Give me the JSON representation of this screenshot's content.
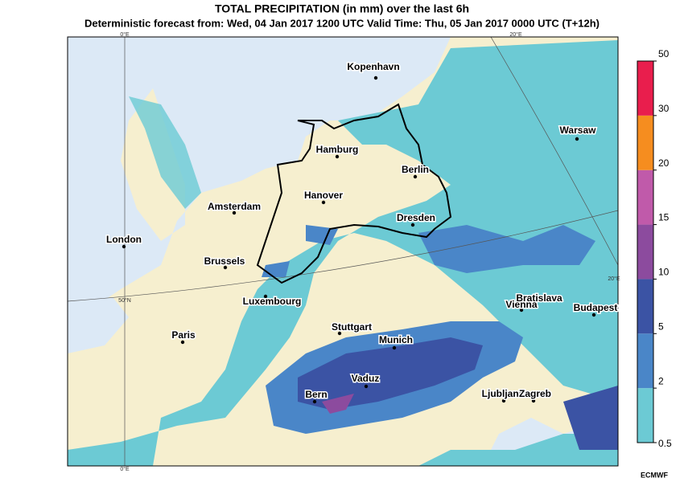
{
  "header": {
    "title": "TOTAL PRECIPITATION (in mm) over the last 6h",
    "subtitle": "Deterministic forecast from: Wed, 04 Jan 2017 1200 UTC   Valid Time: Thu, 05 Jan 2017 0000 UTC (T+12h)"
  },
  "cities": [
    "Kopenhavn",
    "Hamburg",
    "Berlin",
    "Warsaw",
    "Hanover",
    "Amsterdam",
    "Dresden",
    "London",
    "Brussels",
    "Luxembourg",
    "Bratislava",
    "Vienna",
    "Budapest",
    "Stuttgart",
    "Paris",
    "Munich",
    "Vaduz",
    "Bern",
    "Ljubljana",
    "Zagreb"
  ],
  "graticule_labels": [
    "0°E",
    "20°E",
    "20°E",
    "50°N",
    "0°E"
  ],
  "colorbar": {
    "ticks": [
      0.5,
      2,
      5,
      10,
      15,
      20,
      30,
      50
    ],
    "colors": [
      "#6ccad4",
      "#4a86c8",
      "#3b53a4",
      "#8c4b9e",
      "#c05aaa",
      "#f68d1f",
      "#e91e4d"
    ]
  },
  "credit": "ECMWF"
}
